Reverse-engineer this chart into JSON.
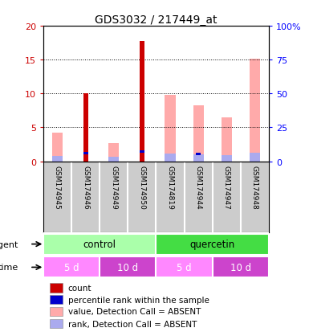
{
  "title": "GDS3032 / 217449_at",
  "samples": [
    "GSM174945",
    "GSM174946",
    "GSM174949",
    "GSM174950",
    "GSM174819",
    "GSM174944",
    "GSM174947",
    "GSM174948"
  ],
  "count_values": [
    0,
    10,
    0,
    17.7,
    0,
    0,
    0,
    0
  ],
  "rank_values": [
    0,
    5.8,
    0,
    7.2,
    0,
    5.2,
    0,
    0
  ],
  "absent_value_values": [
    4.2,
    0,
    2.7,
    0,
    9.8,
    8.3,
    6.5,
    15.2
  ],
  "absent_rank_values": [
    3.7,
    0,
    3.1,
    0,
    5.7,
    5.1,
    4.3,
    6.5
  ],
  "ylim_left": [
    0,
    20
  ],
  "ylim_right": [
    0,
    100
  ],
  "yticks_left": [
    0,
    5,
    10,
    15,
    20
  ],
  "yticks_right": [
    0,
    25,
    50,
    75,
    100
  ],
  "ytick_labels_left": [
    "0",
    "5",
    "10",
    "15",
    "20"
  ],
  "ytick_labels_right": [
    "0",
    "25",
    "50",
    "75",
    "100%"
  ],
  "color_count": "#cc0000",
  "color_rank": "#0000cc",
  "color_absent_value": "#ffaaaa",
  "color_absent_rank": "#aaaaee",
  "bar_width": 0.25,
  "agent_labels": [
    {
      "label": "control",
      "start": 0,
      "end": 4,
      "color": "#aaffaa"
    },
    {
      "label": "quercetin",
      "start": 4,
      "end": 8,
      "color": "#44dd44"
    }
  ],
  "time_labels": [
    {
      "label": "5 d",
      "start": 0,
      "end": 2,
      "color": "#ff88ff"
    },
    {
      "label": "10 d",
      "start": 2,
      "end": 4,
      "color": "#cc44cc"
    },
    {
      "label": "5 d",
      "start": 4,
      "end": 6,
      "color": "#ff88ff"
    },
    {
      "label": "10 d",
      "start": 6,
      "end": 8,
      "color": "#cc44cc"
    }
  ],
  "legend_items": [
    {
      "label": "count",
      "color": "#cc0000"
    },
    {
      "label": "percentile rank within the sample",
      "color": "#0000cc"
    },
    {
      "label": "value, Detection Call = ABSENT",
      "color": "#ffaaaa"
    },
    {
      "label": "rank, Detection Call = ABSENT",
      "color": "#aaaaee"
    }
  ],
  "bg_color": "#ffffff",
  "sample_bg_color": "#cccccc"
}
